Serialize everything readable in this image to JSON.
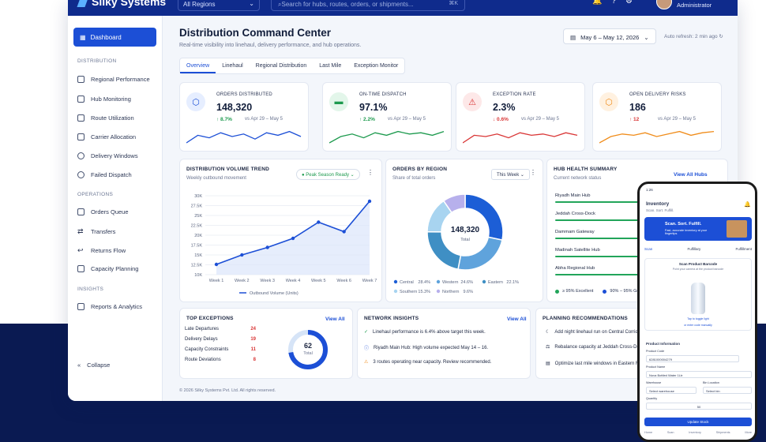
{
  "brand": {
    "name": "Silky Systems"
  },
  "header": {
    "region": "All Regions",
    "search_placeholder": "Search for hubs, routes, orders, or shipments...",
    "shortcut": "⌘K",
    "user_role": "Administrator"
  },
  "sidebar": {
    "dashboard": "Dashboard",
    "sections": [
      {
        "label": "DISTRIBUTION",
        "items": [
          "Regional Performance",
          "Hub Monitoring",
          "Route Utilization",
          "Carrier Allocation",
          "Delivery Windows",
          "Failed Dispatch"
        ]
      },
      {
        "label": "OPERATIONS",
        "items": [
          "Orders Queue",
          "Transfers",
          "Returns Flow",
          "Capacity Planning"
        ]
      },
      {
        "label": "INSIGHTS",
        "items": [
          "Reports & Analytics"
        ]
      }
    ],
    "collapse": "Collapse"
  },
  "page": {
    "title": "Distribution Command Center",
    "subtitle": "Real-time visibility into linehaul, delivery performance, and hub operations.",
    "date_range": "May 6 – May 12, 2026",
    "auto_refresh": "Auto refresh: 2 min ago",
    "footer": "© 2026 Silky Systems Pvt. Ltd. All rights reserved."
  },
  "tabs": [
    "Overview",
    "Linehaul",
    "Regional Distribution",
    "Last Mile",
    "Exception Monitor"
  ],
  "kpis": [
    {
      "label": "ORDERS DISTRIBUTED",
      "value": "148,320",
      "delta": "↑ 8.7%",
      "vs": "vs Apr 29 – May 5",
      "color": "#1c4fd6",
      "bg": "#e6eeff",
      "icon": "⬡",
      "delta_color": "#1d9a4e"
    },
    {
      "label": "ON-TIME DISPATCH",
      "value": "97.1%",
      "delta": "↑ 2.2%",
      "vs": "vs Apr 29 – May 5",
      "color": "#1d9a4e",
      "bg": "#e3f6ea",
      "icon": "▬",
      "delta_color": "#1d9a4e"
    },
    {
      "label": "EXCEPTION RATE",
      "value": "2.3%",
      "delta": "↓ 0.6%",
      "vs": "vs Apr 29 – May 5",
      "color": "#d93636",
      "bg": "#fde8e8",
      "icon": "⚠",
      "delta_color": "#d93636"
    },
    {
      "label": "OPEN DELIVERY RISKS",
      "value": "186",
      "delta": "↑ 12",
      "vs": "vs Apr 29 – May 5",
      "color": "#f08c1a",
      "bg": "#fff1e0",
      "icon": "⬡",
      "delta_color": "#d93636"
    }
  ],
  "volume": {
    "title": "DISTRIBUTION VOLUME TREND",
    "subtitle": "Weekly outbound movement",
    "badge": "Peak Season Ready"
  },
  "orders_region": {
    "title": "ORDERS BY REGION",
    "subtitle": "Share of total orders",
    "filter": "This Week",
    "center_value": "148,320",
    "center_label": "Total"
  },
  "hub_health": {
    "title": "HUB HEALTH SUMMARY",
    "subtitle": "Current network status",
    "link": "View All Hubs",
    "hubs": [
      "Riyadh Main Hub",
      "Jeddah Cross-Dock",
      "Dammam Gateway",
      "Madinah Satellite Hub",
      "Abha Regional Hub"
    ],
    "levels": [
      0.95,
      0.93,
      0.9,
      0.92,
      0.88
    ],
    "legend": [
      "≥ 95% Excellent",
      "90% – 95% Good"
    ]
  },
  "exceptions": {
    "title": "TOP EXCEPTIONS",
    "link": "View All",
    "rows": [
      {
        "label": "Late Departures",
        "count": "24"
      },
      {
        "label": "Delivery Delays",
        "count": "19"
      },
      {
        "label": "Capacity Constraints",
        "count": "11"
      },
      {
        "label": "Route Deviations",
        "count": "8"
      }
    ],
    "total": "62",
    "total_label": "Total"
  },
  "insights": {
    "title": "NETWORK INSIGHTS",
    "link": "View All",
    "rows": [
      "Linehaul performance is 6.4% above target this week.",
      "Riyadh Main Hub: High volume expected May 14 – 16.",
      "3 routes operating near capacity. Review recommended."
    ]
  },
  "planning": {
    "title": "PLANNING RECOMMENDATIONS",
    "rows": [
      "Add night linehaul run on Central Corrido",
      "Rebalance capacity at Jeddah Cross-Do",
      "Optimize last mile windows in Eastern R"
    ]
  },
  "chart_data": [
    {
      "type": "line",
      "title": "DISTRIBUTION VOLUME TREND",
      "x": [
        "Week 1",
        "Week 2",
        "Week 3",
        "Week 4",
        "Week 5",
        "Week 6",
        "Week 7"
      ],
      "series": [
        {
          "name": "Outbound Volume (Units)",
          "values": [
            12.6,
            15.0,
            16.9,
            19.2,
            23.3,
            20.9,
            28.6
          ]
        }
      ],
      "yticks": [
        "10K",
        "12.5K",
        "15K",
        "17.5K",
        "20K",
        "22.5K",
        "25K",
        "27.5K",
        "30K"
      ],
      "ylim": [
        10,
        30
      ],
      "grid": true,
      "legend": "bottom"
    },
    {
      "type": "pie",
      "title": "ORDERS BY REGION",
      "categories": [
        "Central",
        "Western",
        "Eastern",
        "Southern",
        "Northern"
      ],
      "values": [
        28.4,
        24.6,
        22.1,
        15.3,
        9.6
      ],
      "labels": [
        "28.4%",
        "24.6%",
        "22.1%",
        "15.3%",
        "9.6%"
      ],
      "colors": [
        "#1c5ed6",
        "#5fa3dc",
        "#3f8fc4",
        "#a8d4f0",
        "#b7b0ec"
      ],
      "legend": "bottom"
    }
  ],
  "phone": {
    "time": "1:26",
    "title": "Inventory",
    "subtitle": "Scan. Sort. Fulfill.",
    "banner_title": "Scan. Sort. Fulfill.",
    "banner_sub": "Fast, accurate inventory at your fingertips",
    "tabs": [
      "Scan",
      "Fulfillary",
      "Fulfillment"
    ],
    "scan_title": "Scan Product Barcode",
    "scan_hint": "Point your camera at the product barcode",
    "tap": "Tap to toggle light",
    "manual": "or enter code manually",
    "section": "Product Information",
    "code_label": "Product Code",
    "code_value": "6281000004279",
    "name_label": "Product Name",
    "name_value": "Nova Bottled Water 1Ltr",
    "wh_label": "Warehouse",
    "wh_value": "Select warehouse",
    "bin_label": "Bin Location",
    "bin_value": "Select bin",
    "qty_label": "Quantity",
    "qty_value": "50",
    "button": "Update Stock",
    "nav": [
      "Home",
      "Scan",
      "Inventory",
      "Shipments",
      "More"
    ]
  }
}
